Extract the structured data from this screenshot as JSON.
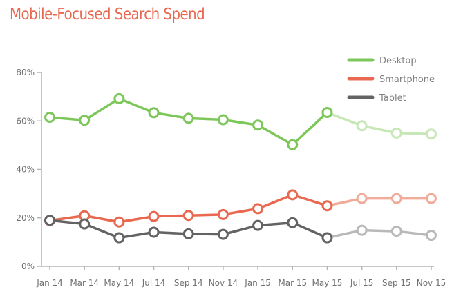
{
  "chart_data": {
    "type": "line",
    "title": "Mobile-Focused Search Spend",
    "categories": [
      "Jan 14",
      "Mar 14",
      "May 14",
      "Jul 14",
      "Sep 14",
      "Nov 14",
      "Jan 15",
      "Mar 15",
      "May 15",
      "Jul 15",
      "Sep 15",
      "Nov 15"
    ],
    "y_ticks": [
      "0%",
      "20%",
      "40%",
      "60%",
      "80%"
    ],
    "ylim": [
      0,
      80
    ],
    "y_unit": "%",
    "projection_start_index": 8,
    "grid": false,
    "legend_position": "top-right",
    "series": [
      {
        "name": "Desktop",
        "color": "#7dc75a",
        "projected_color": "#c8e7b6",
        "values": [
          61.5,
          60.3,
          69.2,
          63.4,
          61.1,
          60.5,
          58.3,
          50.2,
          63.5,
          58.0,
          55.0,
          54.6
        ]
      },
      {
        "name": "Smartphone",
        "color": "#e8694f",
        "projected_color": "#f2ab98",
        "values": [
          18.9,
          20.9,
          18.3,
          20.6,
          21.0,
          21.4,
          23.8,
          29.5,
          25.0,
          28.0,
          28.0,
          28.0
        ]
      },
      {
        "name": "Tablet",
        "color": "#636363",
        "projected_color": "#b9b9b9",
        "values": [
          19.0,
          17.5,
          11.8,
          14.1,
          13.4,
          13.2,
          16.9,
          18.0,
          11.8,
          14.9,
          14.5,
          12.8
        ]
      }
    ]
  }
}
